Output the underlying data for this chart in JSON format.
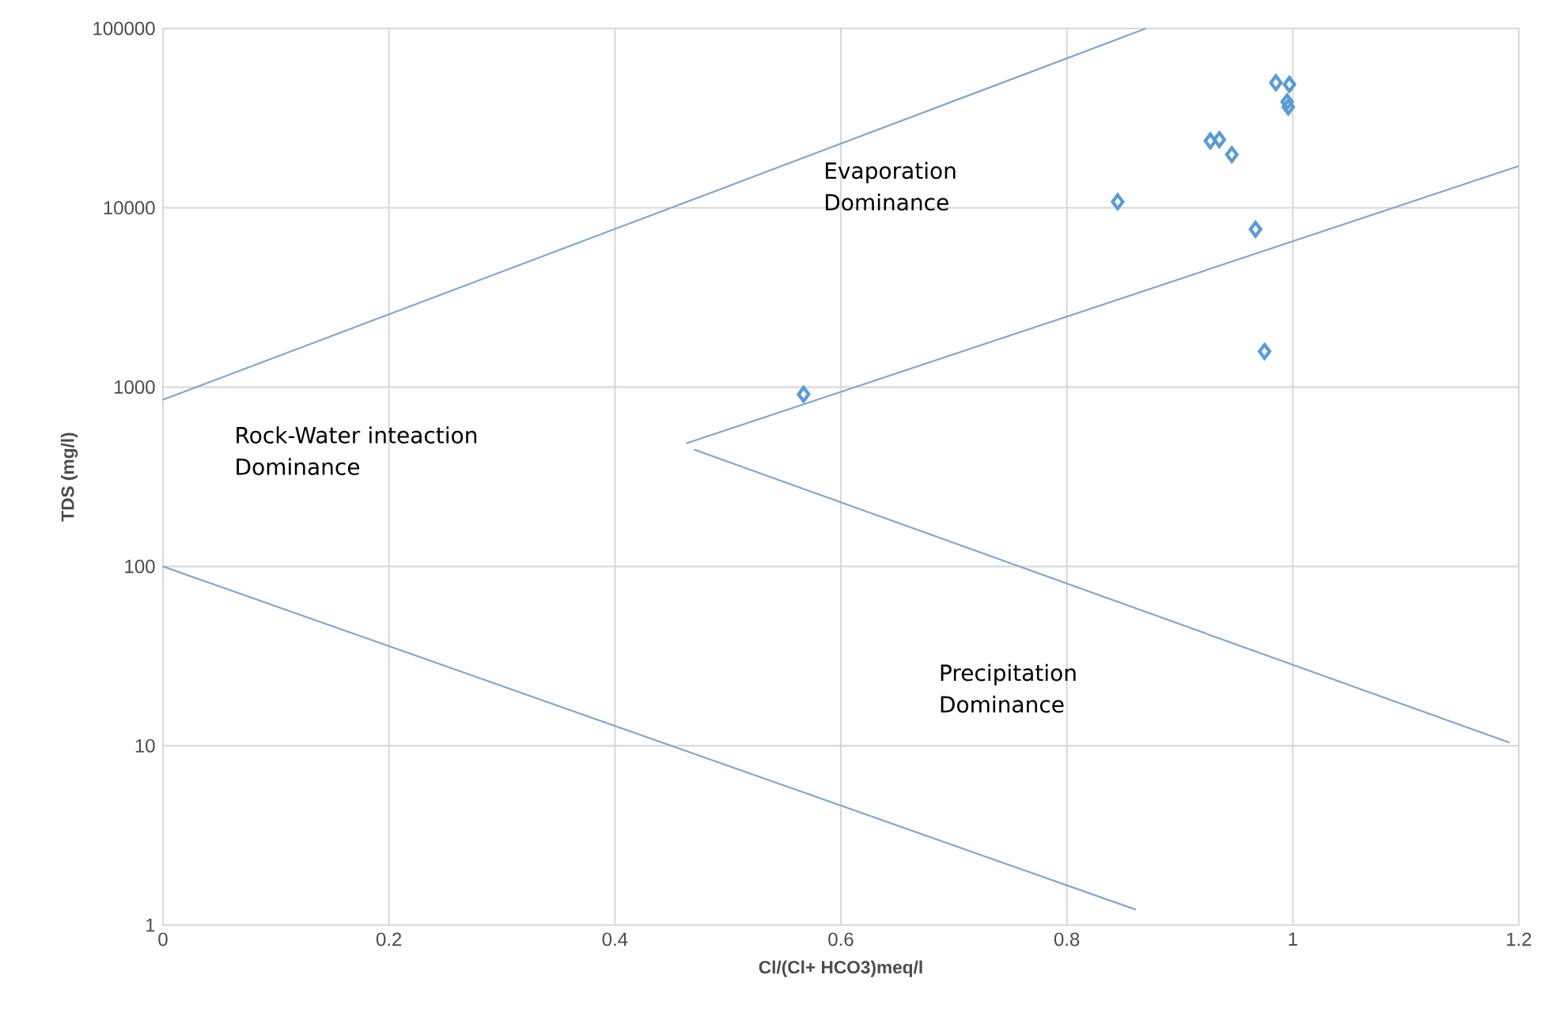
{
  "chart_data": {
    "type": "scatter",
    "xlabel": "Cl/(Cl+ HCO3)meq/l",
    "ylabel": "TDS (mg/l)",
    "log": "y",
    "grid": true,
    "marker": "diamond",
    "xlim": [
      0,
      1.2
    ],
    "xticks": [
      0,
      0.2,
      0.4,
      0.6,
      0.8,
      1,
      1.2
    ],
    "ylim": [
      1,
      100000
    ],
    "yticks": [
      1,
      10,
      100,
      1000,
      10000,
      100000
    ],
    "series": [
      {
        "color": "#5b9bd5",
        "x": [
          0.985,
          0.997,
          0.995,
          0.996,
          0.927,
          0.935,
          0.946,
          0.845,
          0.967,
          0.975,
          0.567
        ],
        "values": [
          49800,
          48800,
          39000,
          36500,
          23600,
          24000,
          19800,
          10800,
          7590,
          1580,
          912
        ]
      },
      {
        "type": "line",
        "color": "#7fa7cc",
        "marker": "none",
        "line_style": "solid",
        "x": [
          0,
          0.87
        ],
        "values": [
          850,
          100000
        ]
      },
      {
        "type": "line",
        "color": "#7fa7cc",
        "marker": "none",
        "line_style": "solid",
        "x": [
          0.463,
          1.2
        ],
        "values": [
          485,
          17100
        ]
      },
      {
        "type": "line",
        "color": "#7fa7cc",
        "marker": "none",
        "line_style": "solid",
        "x": [
          0.47,
          1.192
        ],
        "values": [
          449,
          10.4
        ]
      },
      {
        "type": "line",
        "color": "#7fa7cc",
        "marker": "none",
        "line_style": "solid",
        "x": [
          0,
          0.861
        ],
        "values": [
          100,
          1.22
        ]
      }
    ],
    "annotations": [
      "Evaporation Dominance",
      "Rock-Water inteaction Dominance",
      "Precipitation Dominance"
    ]
  }
}
